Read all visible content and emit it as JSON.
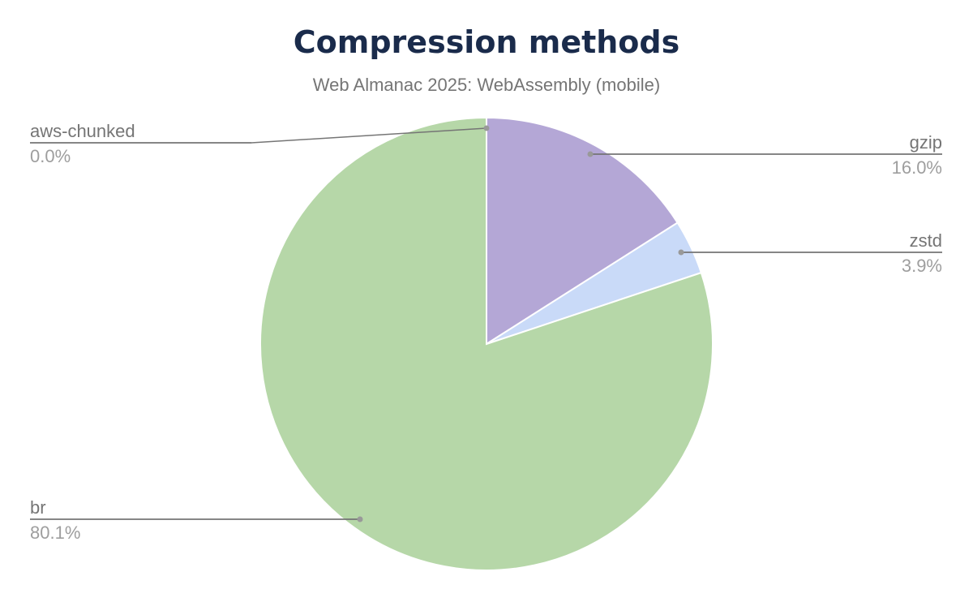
{
  "chart_data": {
    "type": "pie",
    "title": "Compression methods",
    "subtitle": "Web Almanac 2025: WebAssembly (mobile)",
    "slices": [
      {
        "label": "gzip",
        "value": 16.0,
        "display": "16.0%",
        "color": "#b4a7d6"
      },
      {
        "label": "zstd",
        "value": 3.9,
        "display": "3.9%",
        "color": "#c9daf8"
      },
      {
        "label": "br",
        "value": 80.1,
        "display": "80.1%",
        "color": "#b6d7a8"
      },
      {
        "label": "aws-chunked",
        "value": 0.0,
        "display": "0.0%",
        "color": "#e06666"
      }
    ],
    "legend": "labels"
  }
}
